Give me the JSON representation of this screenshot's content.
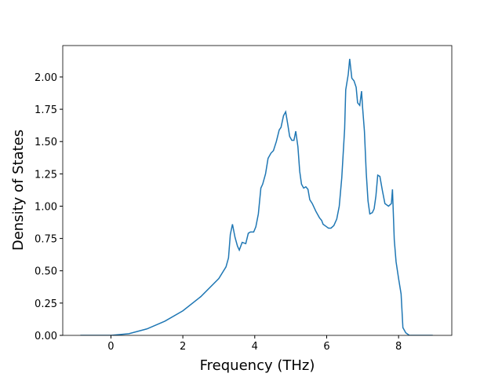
{
  "chart_data": {
    "type": "line",
    "xlabel": "Frequency (THz)",
    "ylabel": "Density of States",
    "x": [
      -0.85,
      0,
      0.5,
      1,
      1.5,
      2,
      2.5,
      3,
      3.2,
      3.27,
      3.32,
      3.38,
      3.45,
      3.52,
      3.57,
      3.65,
      3.75,
      3.82,
      3.88,
      3.97,
      4.03,
      4.1,
      4.17,
      4.22,
      4.3,
      4.37,
      4.45,
      4.52,
      4.6,
      4.68,
      4.73,
      4.8,
      4.86,
      4.92,
      4.97,
      5.03,
      5.09,
      5.14,
      5.2,
      5.25,
      5.3,
      5.36,
      5.42,
      5.48,
      5.53,
      5.6,
      5.7,
      5.8,
      5.86,
      5.9,
      6.0,
      6.05,
      6.12,
      6.2,
      6.28,
      6.35,
      6.42,
      6.5,
      6.53,
      6.6,
      6.64,
      6.7,
      6.76,
      6.82,
      6.86,
      6.92,
      6.97,
      7.0,
      7.05,
      7.1,
      7.15,
      7.2,
      7.27,
      7.32,
      7.37,
      7.42,
      7.48,
      7.55,
      7.62,
      7.72,
      7.8,
      7.83,
      7.88,
      7.93,
      8.0,
      8.07,
      8.12,
      8.2,
      8.3,
      8.95
    ],
    "series": [
      {
        "color": "#1f77b4",
        "values": [
          0,
          0,
          0.013,
          0.05,
          0.11,
          0.19,
          0.3,
          0.44,
          0.53,
          0.6,
          0.78,
          0.86,
          0.76,
          0.69,
          0.66,
          0.72,
          0.71,
          0.79,
          0.8,
          0.8,
          0.84,
          0.94,
          1.14,
          1.17,
          1.25,
          1.37,
          1.41,
          1.43,
          1.5,
          1.59,
          1.61,
          1.7,
          1.73,
          1.63,
          1.54,
          1.51,
          1.51,
          1.58,
          1.46,
          1.27,
          1.17,
          1.14,
          1.15,
          1.13,
          1.05,
          1.02,
          0.96,
          0.91,
          0.89,
          0.86,
          0.84,
          0.83,
          0.83,
          0.85,
          0.9,
          1.0,
          1.22,
          1.6,
          1.9,
          2.02,
          2.14,
          1.99,
          1.97,
          1.92,
          1.8,
          1.78,
          1.89,
          1.76,
          1.58,
          1.26,
          1.04,
          0.94,
          0.95,
          0.98,
          1.08,
          1.24,
          1.23,
          1.12,
          1.02,
          1.0,
          1.02,
          1.13,
          0.74,
          0.57,
          0.44,
          0.32,
          0.06,
          0.02,
          0,
          0
        ]
      }
    ],
    "xlim": [
      -1.34,
      9.48
    ],
    "xticks": [
      0,
      2,
      4,
      6,
      8
    ],
    "ylim": [
      0,
      2.243
    ],
    "yticks": [
      {
        "value": 0,
        "label": "0.00"
      },
      {
        "value": 0.25,
        "label": "0.25"
      },
      {
        "value": 0.5,
        "label": "0.50"
      },
      {
        "value": 0.75,
        "label": "0.75"
      },
      {
        "value": 1,
        "label": "1.00"
      },
      {
        "value": 1.25,
        "label": "1.25"
      },
      {
        "value": 1.5,
        "label": "1.50"
      },
      {
        "value": 1.75,
        "label": "1.75"
      },
      {
        "value": 2,
        "label": "2.00"
      }
    ]
  }
}
